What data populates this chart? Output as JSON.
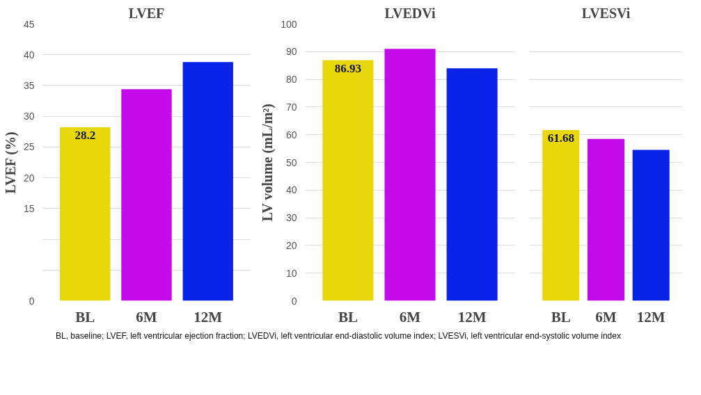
{
  "chart_data": [
    {
      "type": "bar",
      "title": "LVEF",
      "ylabel": "LVEF (%)",
      "categories": [
        "BL",
        "6M",
        "12M"
      ],
      "values": [
        28.2,
        34.4,
        38.8
      ],
      "colors": [
        "#e8d70a",
        "#c40ae8",
        "#0a23e8"
      ],
      "value_labels": [
        "28.2",
        null,
        null
      ],
      "ylim": [
        0,
        45
      ],
      "yticks": [
        0,
        {
          "value": 5,
          "label": null
        },
        {
          "value": 10,
          "label": null
        },
        15,
        20,
        25,
        30,
        35,
        40,
        45
      ],
      "grid": "y",
      "annotations": [
        "BL, baseline; LVEF, left ventricular ejection fraction; LVEDVi, left ventricular end-diastolic volume index; LVESVi, left ventricular end-systolic volume index"
      ]
    },
    {
      "type": "bar",
      "title": "LVEDVi",
      "ylabel": "LV volume (mL/m²)",
      "categories": [
        "BL",
        "6M",
        "12M"
      ],
      "values": [
        86.93,
        91,
        84
      ],
      "colors": [
        "#e8d70a",
        "#c40ae8",
        "#0a23e8"
      ],
      "value_labels": [
        "86.93",
        null,
        null
      ],
      "ylim": [
        0,
        100
      ],
      "yticks": [
        0,
        10,
        20,
        30,
        40,
        50,
        60,
        70,
        80,
        90,
        100
      ],
      "grid": "y"
    },
    {
      "type": "bar",
      "title": "LVESVi",
      "categories": [
        "BL",
        "6M",
        "12M"
      ],
      "values": [
        61.68,
        58.5,
        54.5
      ],
      "colors": [
        "#e8d70a",
        "#c40ae8",
        "#0a23e8"
      ],
      "value_labels": [
        "61.68",
        null,
        null
      ],
      "ylim": [
        0,
        100
      ],
      "yticks": [
        0,
        10,
        20,
        30,
        40,
        50,
        60,
        70,
        80,
        90,
        100
      ],
      "grid": "y",
      "tick_labels": "x"
    }
  ]
}
